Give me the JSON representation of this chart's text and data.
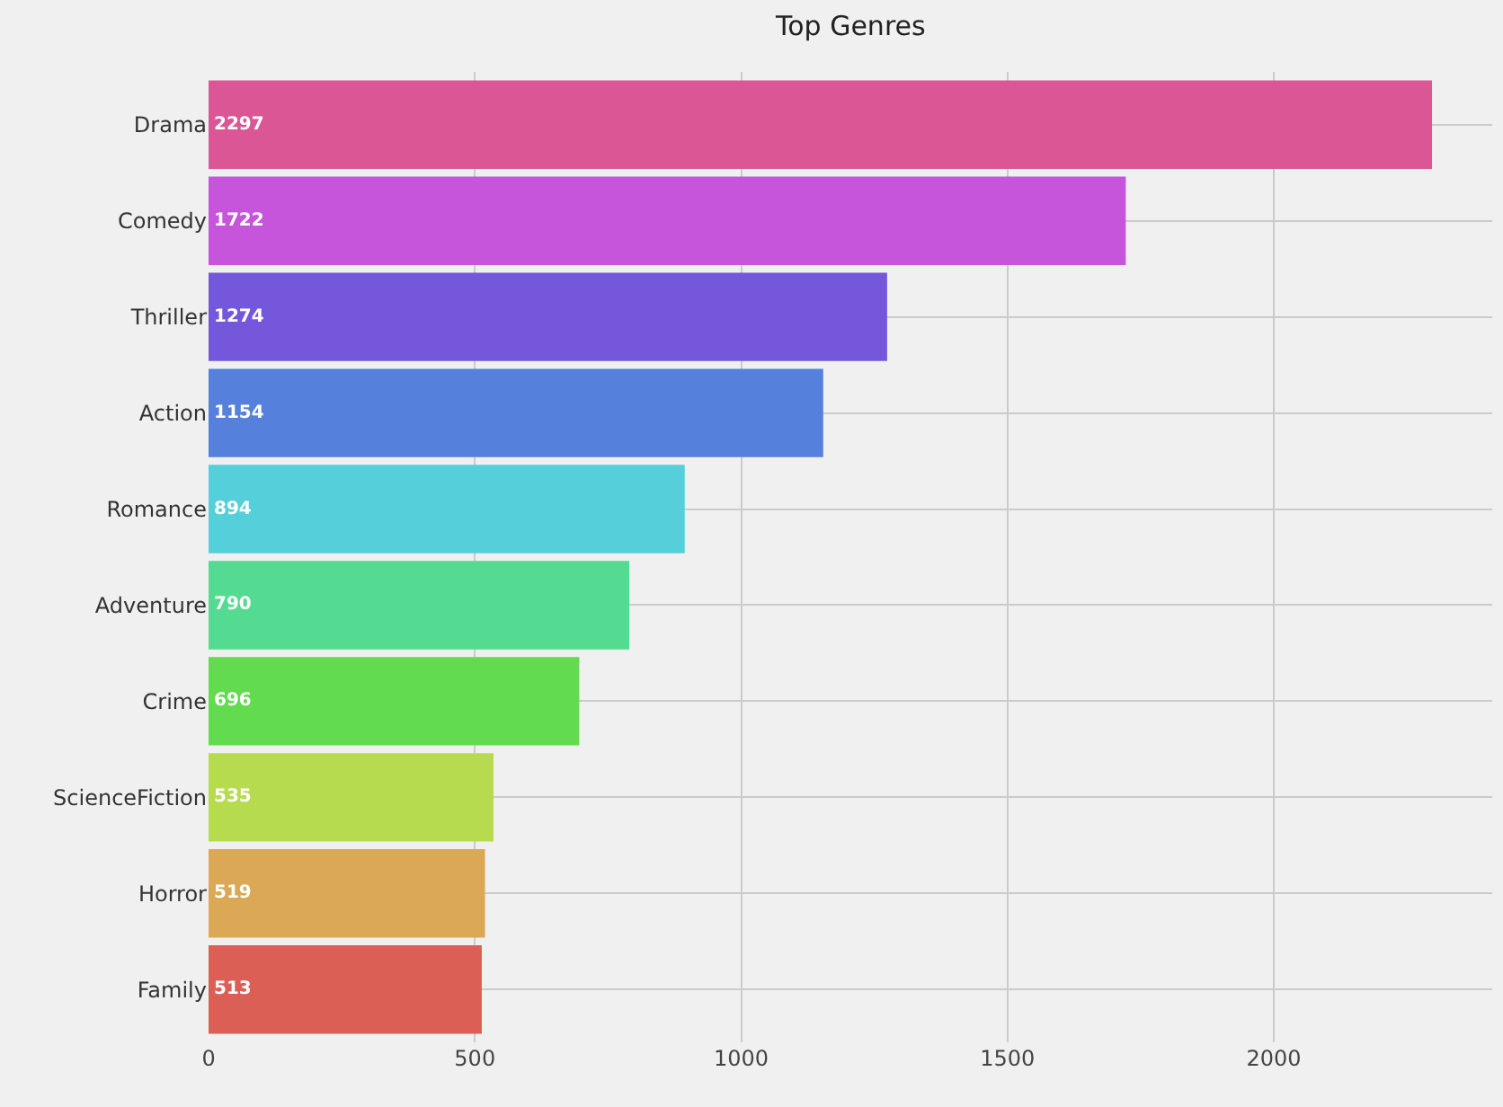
{
  "chart_data": {
    "type": "bar",
    "orientation": "horizontal",
    "title": "Top Genres",
    "categories": [
      "Drama",
      "Comedy",
      "Thriller",
      "Action",
      "Romance",
      "Adventure",
      "Crime",
      "ScienceFiction",
      "Horror",
      "Family"
    ],
    "values": [
      2297,
      1722,
      1274,
      1154,
      894,
      790,
      696,
      535,
      519,
      513
    ],
    "colors": [
      "#db5695",
      "#c655db",
      "#7557db",
      "#5580db",
      "#55d0db",
      "#55db91",
      "#62db4f",
      "#b7db4f",
      "#dba955",
      "#db5f55"
    ],
    "xlim": [
      0,
      2410
    ],
    "xticks": [
      0,
      500,
      1000,
      1500,
      2000
    ],
    "grid": true,
    "data_labels": true
  }
}
